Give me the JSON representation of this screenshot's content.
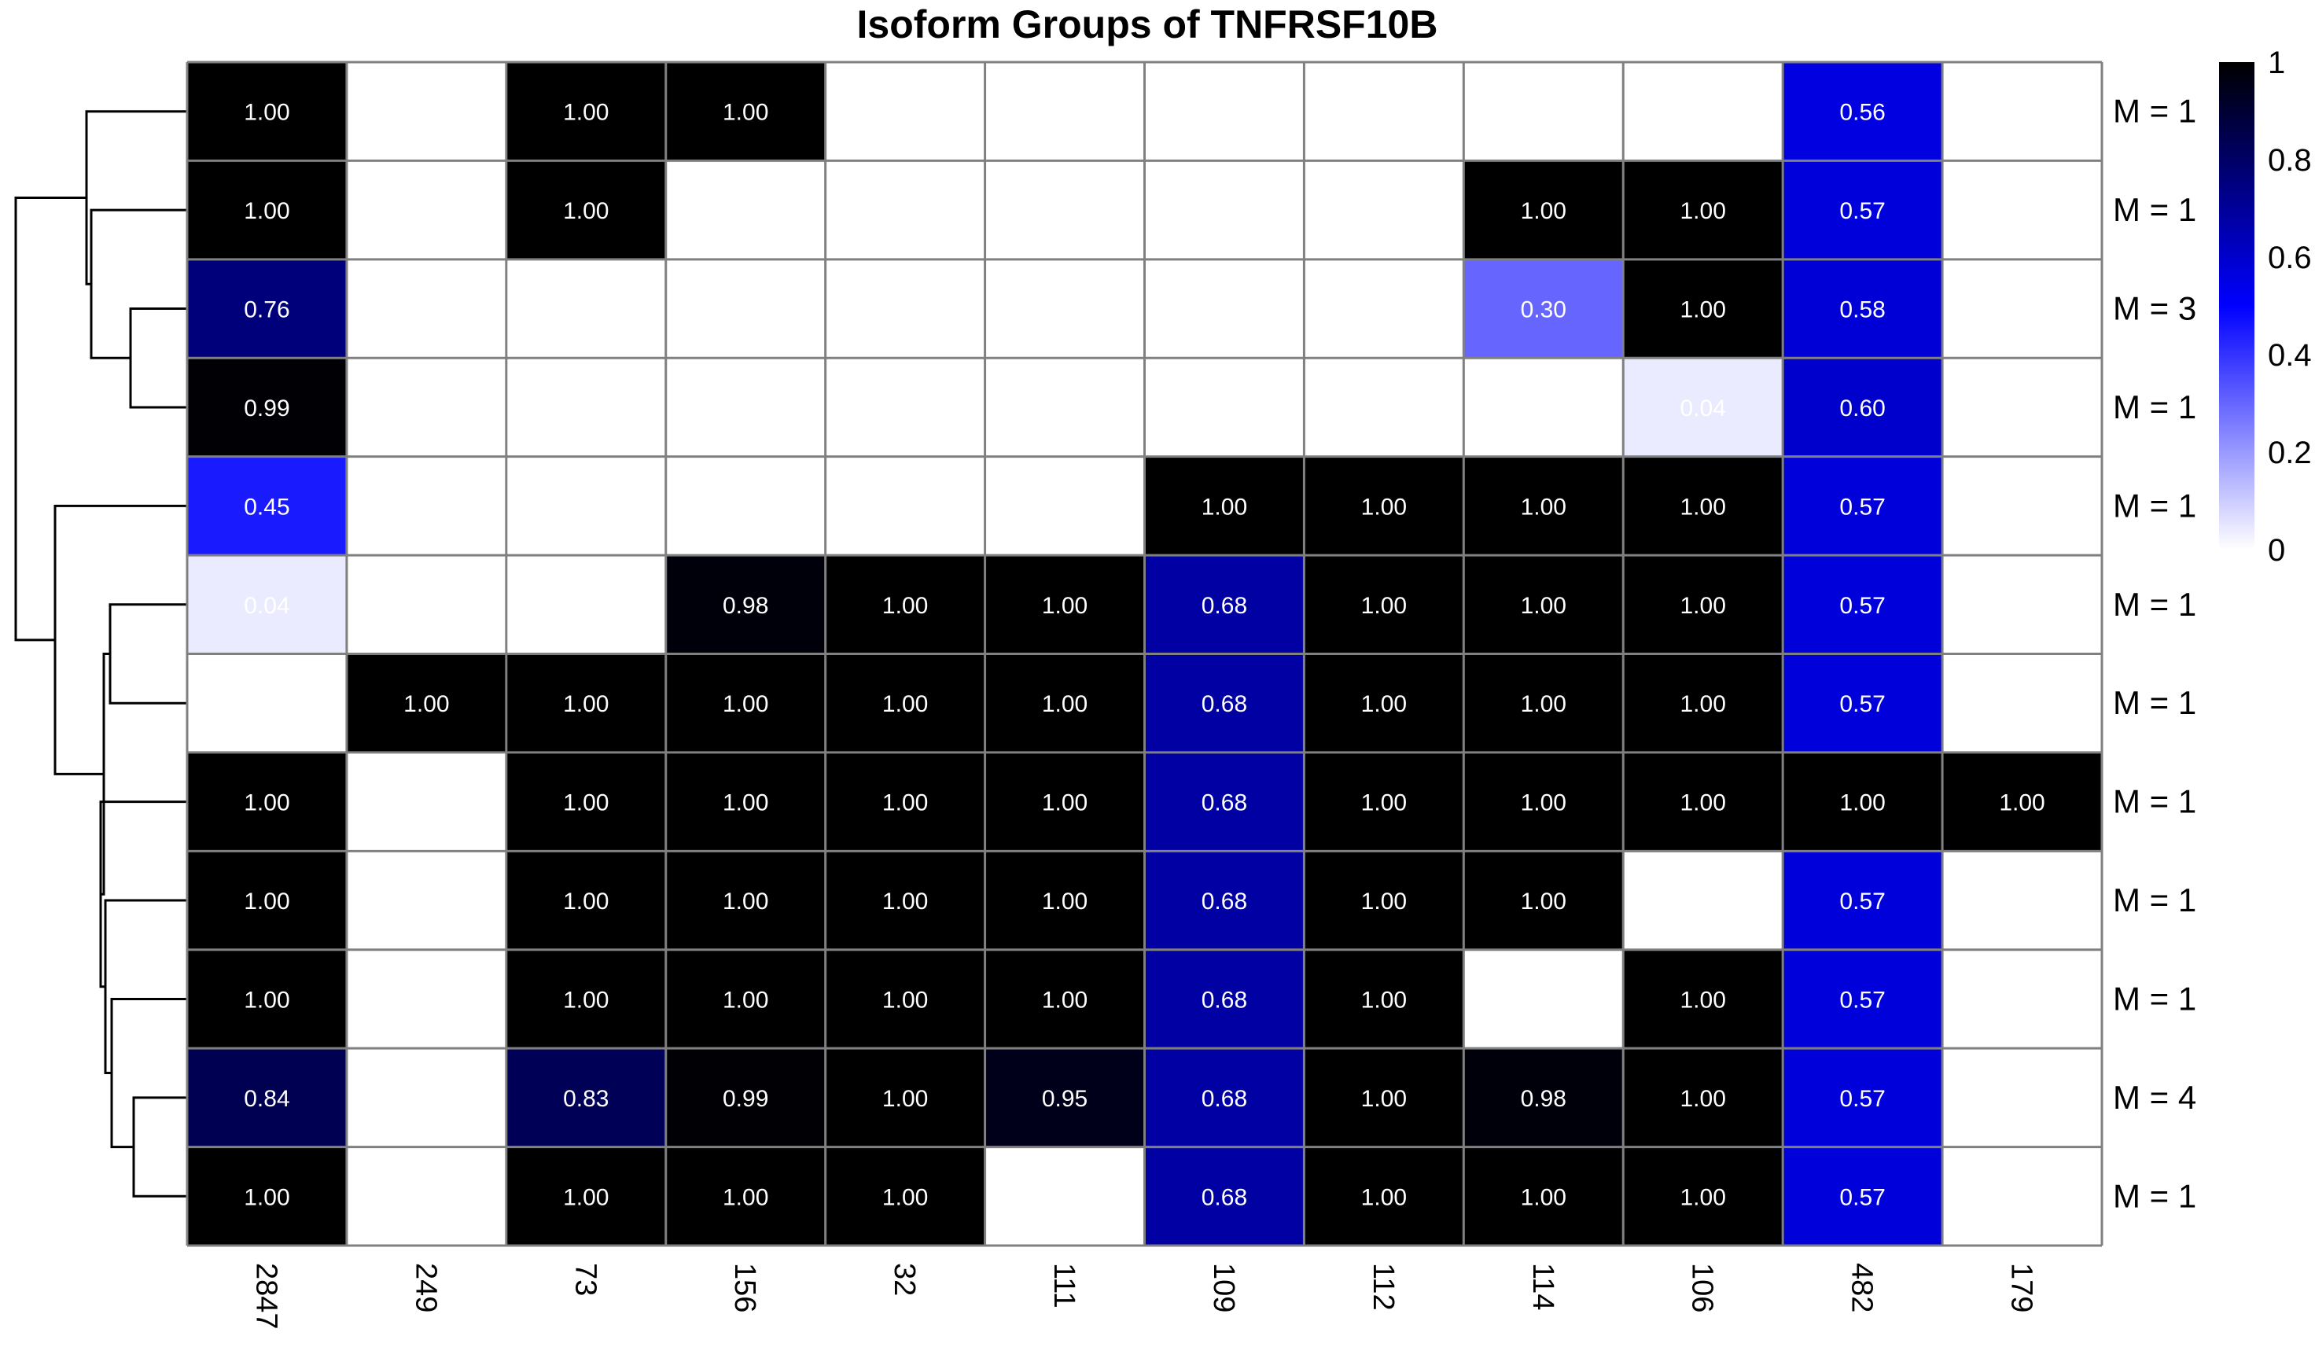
{
  "chart_data": {
    "type": "heatmap",
    "title": "Isoform Groups of TNFRSF10B",
    "columns": [
      "2847",
      "249",
      "73",
      "156",
      "32",
      "111",
      "109",
      "112",
      "114",
      "106",
      "482",
      "179"
    ],
    "row_labels": [
      "M = 1",
      "M = 1",
      "M = 3",
      "M = 1",
      "M = 1",
      "M = 1",
      "M = 1",
      "M = 1",
      "M = 1",
      "M = 1",
      "M = 4",
      "M = 1"
    ],
    "values": [
      [
        1.0,
        null,
        1.0,
        1.0,
        null,
        null,
        null,
        null,
        null,
        null,
        0.56,
        null
      ],
      [
        1.0,
        null,
        1.0,
        null,
        null,
        null,
        null,
        null,
        1.0,
        1.0,
        0.57,
        null
      ],
      [
        0.76,
        null,
        null,
        null,
        null,
        null,
        null,
        null,
        0.3,
        1.0,
        0.58,
        null
      ],
      [
        0.99,
        null,
        null,
        null,
        null,
        null,
        null,
        null,
        null,
        0.04,
        0.6,
        null
      ],
      [
        0.45,
        null,
        null,
        null,
        null,
        null,
        1.0,
        1.0,
        1.0,
        1.0,
        0.57,
        null
      ],
      [
        0.04,
        null,
        null,
        0.98,
        1.0,
        1.0,
        0.68,
        1.0,
        1.0,
        1.0,
        0.57,
        null
      ],
      [
        null,
        1.0,
        1.0,
        1.0,
        1.0,
        1.0,
        0.68,
        1.0,
        1.0,
        1.0,
        0.57,
        null
      ],
      [
        1.0,
        null,
        1.0,
        1.0,
        1.0,
        1.0,
        0.68,
        1.0,
        1.0,
        1.0,
        1.0,
        1.0
      ],
      [
        1.0,
        null,
        1.0,
        1.0,
        1.0,
        1.0,
        0.68,
        1.0,
        1.0,
        null,
        0.57,
        null
      ],
      [
        1.0,
        null,
        1.0,
        1.0,
        1.0,
        1.0,
        0.68,
        1.0,
        null,
        1.0,
        0.57,
        null
      ],
      [
        0.84,
        null,
        0.83,
        0.99,
        1.0,
        0.95,
        0.68,
        1.0,
        0.98,
        1.0,
        0.57,
        null
      ],
      [
        1.0,
        null,
        1.0,
        1.0,
        1.0,
        null,
        0.68,
        1.0,
        1.0,
        1.0,
        0.57,
        null
      ]
    ],
    "color_scale": {
      "range": [
        0,
        1
      ],
      "stops": [
        {
          "value": 0,
          "color": "#ffffff"
        },
        {
          "value": 0.5,
          "color": "#0000ff"
        },
        {
          "value": 1,
          "color": "#000000"
        }
      ],
      "ticks": [
        "0",
        "0.2",
        "0.4",
        "0.6",
        "0.8",
        "1"
      ]
    },
    "row_dendrogram": true,
    "grid_color": "#808080",
    "legend_position": "top-right"
  }
}
